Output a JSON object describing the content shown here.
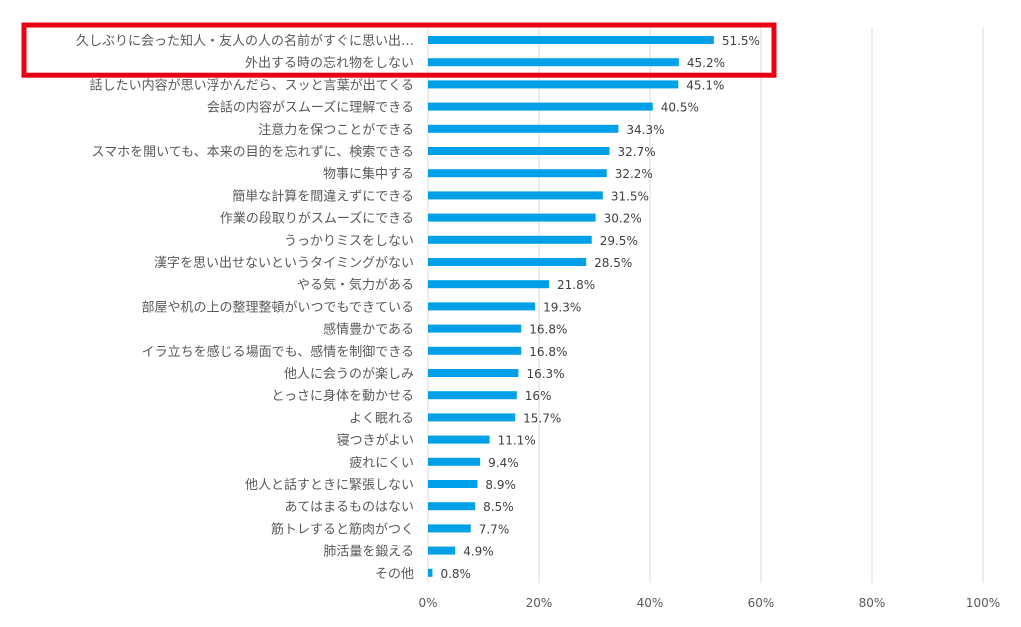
{
  "chart_data": {
    "type": "bar",
    "orientation": "horizontal",
    "categories": [
      "久しぶりに会った知人・友人の人の名前がすぐに思い出…",
      "外出する時の忘れ物をしない",
      "話したい内容が思い浮かんだら、スッと言葉が出てくる",
      "会話の内容がスムーズに理解できる",
      "注意力を保つことができる",
      "スマホを開いても、本来の目的を忘れずに、検索できる",
      "物事に集中する",
      "簡単な計算を間違えずにできる",
      "作業の段取りがスムーズにできる",
      "うっかりミスをしない",
      "漢字を思い出せないというタイミングがない",
      "やる気・気力がある",
      "部屋や机の上の整理整頓がいつでもできている",
      "感情豊かである",
      "イラ立ちを感じる場面でも、感情を制御できる",
      "他人に会うのが楽しみ",
      "とっさに身体を動かせる",
      "よく眠れる",
      "寝つきがよい",
      "疲れにくい",
      "他人と話すときに緊張しない",
      "あてはまるものはない",
      "筋トレすると筋肉がつく",
      "肺活量を鍛える",
      "その他"
    ],
    "values": [
      51.5,
      45.2,
      45.1,
      40.5,
      34.3,
      32.7,
      32.2,
      31.5,
      30.2,
      29.5,
      28.5,
      21.8,
      19.3,
      16.8,
      16.8,
      16.3,
      16,
      15.7,
      11.1,
      9.4,
      8.9,
      8.5,
      7.7,
      4.9,
      0.8
    ],
    "value_labels": [
      "51.5%",
      "45.2%",
      "45.1%",
      "40.5%",
      "34.3%",
      "32.7%",
      "32.2%",
      "31.5%",
      "30.2%",
      "29.5%",
      "28.5%",
      "21.8%",
      "19.3%",
      "16.8%",
      "16.8%",
      "16.3%",
      "16%",
      "15.7%",
      "11.1%",
      "9.4%",
      "8.9%",
      "8.5%",
      "7.7%",
      "4.9%",
      "0.8%"
    ],
    "xlim": [
      0,
      100
    ],
    "xticks": [
      "0%",
      "20%",
      "40%",
      "60%",
      "80%",
      "100%"
    ],
    "grid": true,
    "highlight": {
      "categories": [
        0,
        1
      ],
      "color": "#e60012"
    },
    "bar_color": "#00a0e9"
  }
}
